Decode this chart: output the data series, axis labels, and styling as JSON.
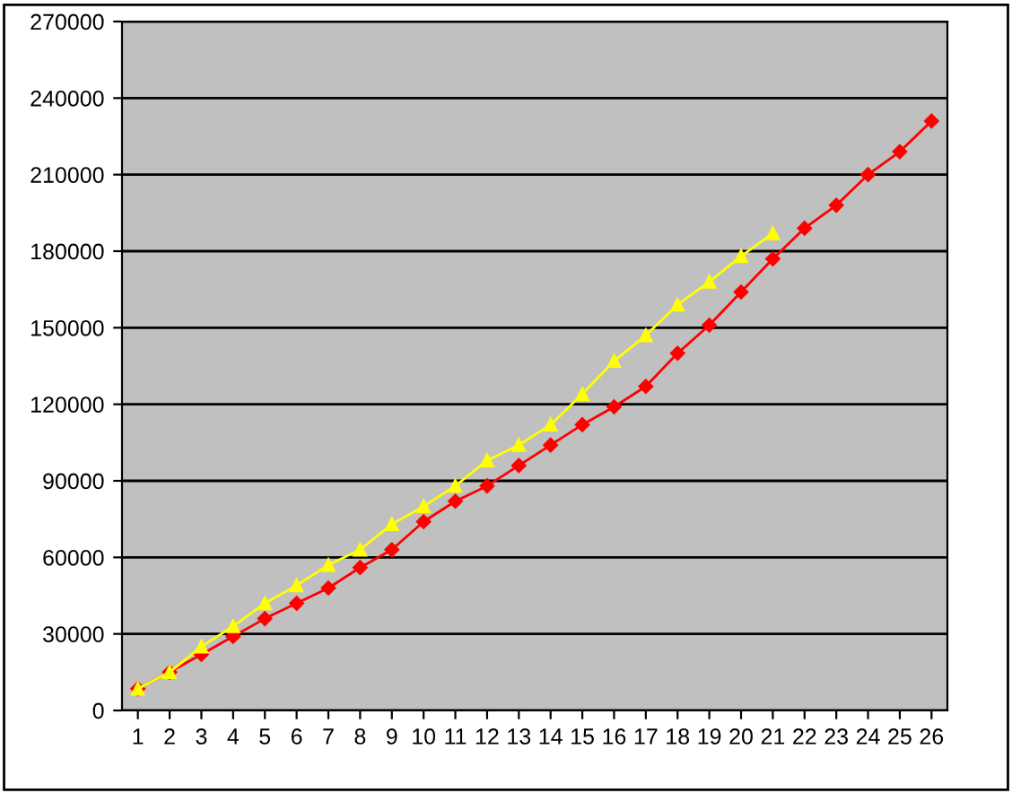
{
  "chart_data": {
    "type": "line",
    "categories": [
      "1",
      "2",
      "3",
      "4",
      "5",
      "6",
      "7",
      "8",
      "9",
      "10",
      "11",
      "12",
      "13",
      "14",
      "15",
      "16",
      "17",
      "18",
      "19",
      "20",
      "21",
      "22",
      "23",
      "24",
      "25",
      "26"
    ],
    "series": [
      {
        "color": "#ff0000",
        "marker": "diamond",
        "values": [
          8500,
          15000,
          22000,
          29000,
          36000,
          42000,
          48000,
          56000,
          63000,
          74000,
          82000,
          88000,
          96000,
          104000,
          112000,
          119000,
          127000,
          140000,
          151000,
          164000,
          177000,
          189000,
          198000,
          210000,
          219000,
          231000
        ]
      },
      {
        "color": "#ffff00",
        "marker": "triangle",
        "values": [
          8500,
          15000,
          25000,
          33000,
          42000,
          49000,
          57000,
          63000,
          73000,
          80000,
          88000,
          98000,
          104000,
          112000,
          124000,
          137000,
          147000,
          159000,
          168000,
          178000,
          187000,
          null,
          null,
          null,
          null,
          null
        ]
      }
    ],
    "ylim": [
      0,
      270000
    ],
    "yticks": [
      0,
      30000,
      60000,
      90000,
      120000,
      150000,
      180000,
      210000,
      240000,
      270000
    ],
    "grid": "y",
    "line_style": "solid",
    "legend": false
  }
}
